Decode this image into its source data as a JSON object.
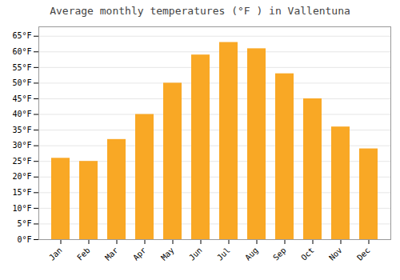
{
  "chart_data": {
    "type": "bar",
    "title": "Average monthly temperatures (°F ) in Vallentuna",
    "categories": [
      "Jan",
      "Feb",
      "Mar",
      "Apr",
      "May",
      "Jun",
      "Jul",
      "Aug",
      "Sep",
      "Oct",
      "Nov",
      "Dec"
    ],
    "values": [
      26,
      25,
      32,
      40,
      50,
      59,
      63,
      61,
      53,
      45,
      36,
      29
    ],
    "color": "#F9A825",
    "ylim": [
      0,
      68
    ],
    "yticks": [
      {
        "value": 0,
        "label": "0°F"
      },
      {
        "value": 5,
        "label": "5°F"
      },
      {
        "value": 10,
        "label": "10°F"
      },
      {
        "value": 15,
        "label": "15°F"
      },
      {
        "value": 20,
        "label": "20°F"
      },
      {
        "value": 25,
        "label": "25°F"
      },
      {
        "value": 30,
        "label": "30°F"
      },
      {
        "value": 35,
        "label": "35°F"
      },
      {
        "value": 40,
        "label": "40°F"
      },
      {
        "value": 45,
        "label": "45°F"
      },
      {
        "value": 50,
        "label": "50°F"
      },
      {
        "value": 55,
        "label": "55°F"
      },
      {
        "value": 60,
        "label": "60°F"
      },
      {
        "value": 65,
        "label": "65°F"
      }
    ],
    "grid": true
  }
}
